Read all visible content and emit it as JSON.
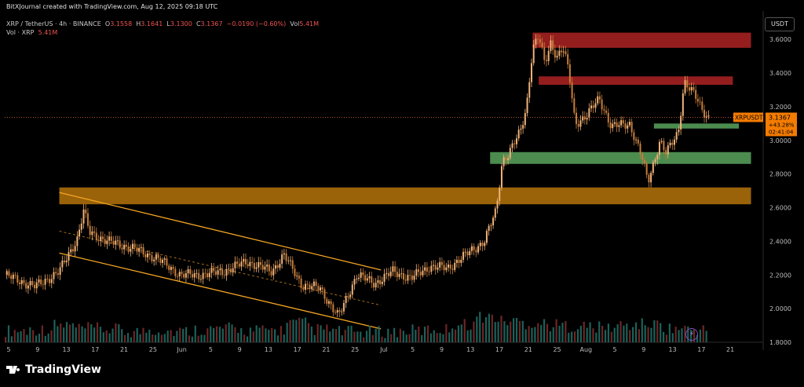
{
  "header": {
    "credit": "BitXJournal created with TradingView.com, Aug 12, 2025 09:18 UTC",
    "symbol_line": "XRP / TetherUS · 4h · BINANCE",
    "o_label": "O",
    "o": "3.1558",
    "h_label": "H",
    "h": "3.1641",
    "l_label": "L",
    "l": "3.1300",
    "c_label": "C",
    "c": "3.1367",
    "change": "−0.0190 (−0.60%)",
    "vol_label": "Vol",
    "vol": "5.41M",
    "vol_line_label": "Vol · XRP",
    "vol_line_value": "5.41M"
  },
  "currency_button": "USDT",
  "price_tag": {
    "symbol": "XRPUSDT",
    "price": "3.1367",
    "change": "+43.28%",
    "countdown": "02:41:04"
  },
  "footer": {
    "brand": "TradingView"
  },
  "colors": {
    "up": "#26a69a",
    "down": "#ef5350",
    "candle": "#e8a25a",
    "channel": "#f5a623",
    "supply": "#c62828",
    "demand": "#66bb6a",
    "support": "#c17a0b"
  },
  "chart_data": {
    "type": "candlestick",
    "timeframe": "4h",
    "ylim": [
      1.8,
      3.75
    ],
    "y_ticks": [
      3.6,
      3.4,
      3.2,
      3.0,
      2.8,
      2.6,
      2.4,
      2.2,
      2.0,
      1.8
    ],
    "y_tick_labels": [
      "3.6000",
      "3.4000",
      "3.2000",
      "3.0000",
      "2.8000",
      "2.6000",
      "2.4000",
      "2.2000",
      "2.0000",
      "1.8000"
    ],
    "x_tick_labels": [
      "5",
      "9",
      "13",
      "17",
      "21",
      "25",
      "Jun",
      "5",
      "9",
      "13",
      "17",
      "21",
      "25",
      "Jul",
      "5",
      "9",
      "13",
      "17",
      "21",
      "25",
      "Aug",
      "5",
      "9",
      "13",
      "17",
      "21"
    ],
    "last_price": 3.1367,
    "price_path": [
      [
        0,
        2.2
      ],
      [
        5,
        2.13
      ],
      [
        9,
        2.22
      ],
      [
        12,
        2.42
      ],
      [
        13,
        2.58
      ],
      [
        14,
        2.45
      ],
      [
        17,
        2.4
      ],
      [
        21,
        2.36
      ],
      [
        25,
        2.3
      ],
      [
        29,
        2.2
      ],
      [
        32,
        2.2
      ],
      [
        36,
        2.22
      ],
      [
        40,
        2.28
      ],
      [
        44,
        2.22
      ],
      [
        46,
        2.32
      ],
      [
        49,
        2.14
      ],
      [
        52,
        2.12
      ],
      [
        55,
        1.95
      ],
      [
        58,
        2.2
      ],
      [
        61,
        2.15
      ],
      [
        64,
        2.22
      ],
      [
        67,
        2.18
      ],
      [
        70,
        2.25
      ],
      [
        73,
        2.24
      ],
      [
        76,
        2.32
      ],
      [
        79,
        2.4
      ],
      [
        81,
        2.58
      ],
      [
        82,
        2.88
      ],
      [
        83,
        2.92
      ],
      [
        85,
        3.05
      ],
      [
        86,
        3.2
      ],
      [
        87,
        3.55
      ],
      [
        88,
        3.62
      ],
      [
        89,
        3.45
      ],
      [
        90,
        3.58
      ],
      [
        91,
        3.5
      ],
      [
        92,
        3.55
      ],
      [
        93,
        3.4
      ],
      [
        94,
        3.1
      ],
      [
        96,
        3.15
      ],
      [
        98,
        3.25
      ],
      [
        100,
        3.08
      ],
      [
        103,
        3.1
      ],
      [
        105,
        2.9
      ],
      [
        106,
        2.75
      ],
      [
        108,
        3.0
      ],
      [
        109,
        2.92
      ],
      [
        111,
        3.05
      ],
      [
        112,
        3.35
      ],
      [
        113,
        3.3
      ],
      [
        114,
        3.25
      ],
      [
        115,
        3.18
      ],
      [
        116,
        3.1367
      ]
    ],
    "volume_profile": [
      0.25,
      0.3,
      0.5,
      0.35,
      0.3,
      0.2,
      0.28,
      0.22,
      0.3,
      0.35,
      0.25,
      0.28,
      0.6,
      0.3,
      0.2,
      0.18,
      0.2,
      0.25,
      0.3,
      0.55,
      0.9,
      0.7,
      0.6,
      0.5,
      0.45,
      0.4,
      0.5,
      0.55,
      0.35,
      0.3
    ],
    "zones": [
      {
        "name": "supply-zone-top",
        "type": "supply",
        "y0": 3.55,
        "y1": 3.64,
        "x0": 87,
        "x1": 123
      },
      {
        "name": "supply-zone-mid",
        "type": "supply",
        "y0": 3.33,
        "y1": 3.38,
        "x0": 88,
        "x1": 120
      },
      {
        "name": "demand-zone-small",
        "type": "demand",
        "y0": 3.07,
        "y1": 3.1,
        "x0": 107,
        "x1": 121
      },
      {
        "name": "demand-zone-large",
        "type": "demand",
        "y0": 2.86,
        "y1": 2.93,
        "x0": 80,
        "x1": 123
      },
      {
        "name": "support-zone",
        "type": "support",
        "y0": 2.62,
        "y1": 2.72,
        "x0": 9,
        "x1": 123
      }
    ],
    "channel": {
      "upper": [
        [
          9,
          2.69
        ],
        [
          62,
          2.23
        ]
      ],
      "middle": [
        [
          9,
          2.46
        ],
        [
          62,
          2.02
        ]
      ],
      "lower": [
        [
          9,
          2.33
        ],
        [
          62,
          1.88
        ]
      ]
    }
  }
}
